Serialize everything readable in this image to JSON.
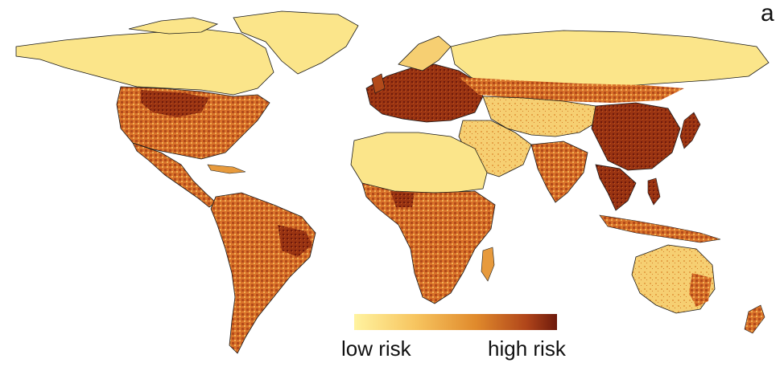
{
  "figure": {
    "panel_label": "a",
    "legend": {
      "low_label": "low risk",
      "high_label": "high risk",
      "gradient_colors": [
        "#fff3a0",
        "#f7c560",
        "#e08a2c",
        "#b0451a",
        "#6e1a0c"
      ]
    },
    "colors": {
      "background": "#ffffff",
      "low_risk_fill": "#fbe58a",
      "medium_risk_fill": "#e79a3c",
      "high_risk_fill": "#8a2a10",
      "border_stroke": "#1a1a1a"
    },
    "projection": "equirectangular world map"
  }
}
